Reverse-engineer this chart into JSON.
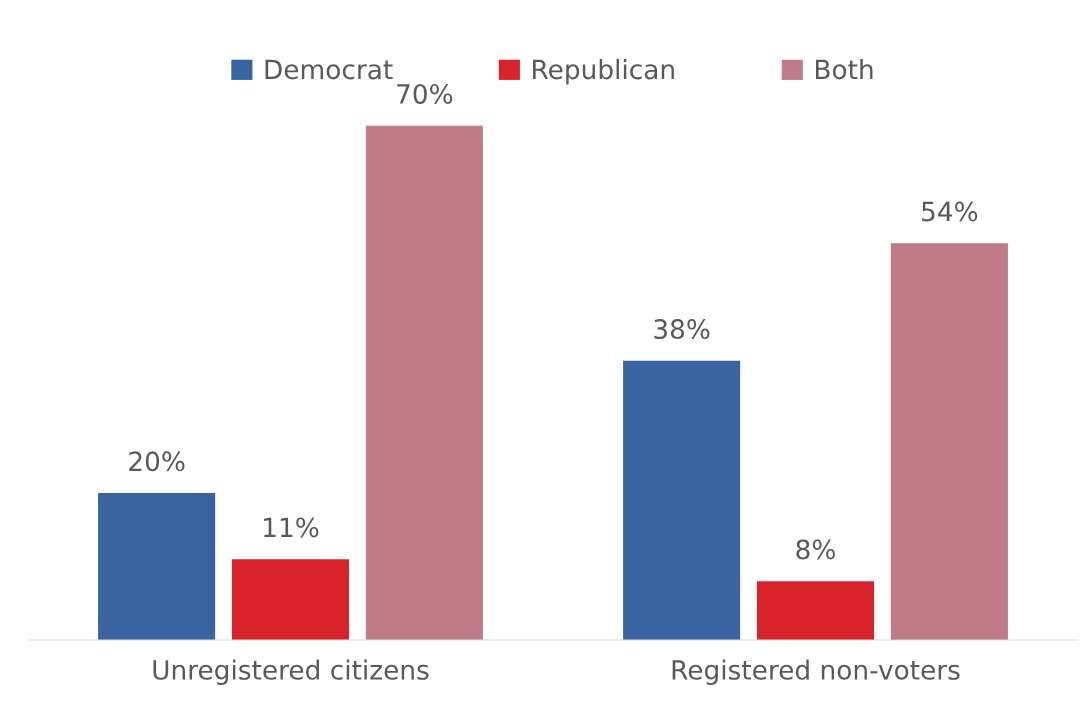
{
  "chart_data": {
    "type": "bar",
    "categories": [
      "Unregistered citizens",
      "Registered non-voters"
    ],
    "series": [
      {
        "name": "Democrat",
        "color": "#3a64a0",
        "values": [
          20,
          38
        ],
        "value_labels": [
          "20%",
          "38%"
        ]
      },
      {
        "name": "Republican",
        "color": "#d9232a",
        "values": [
          11,
          8
        ],
        "value_labels": [
          "11%",
          "8%"
        ]
      },
      {
        "name": "Both",
        "color": "#c07b88",
        "values": [
          70,
          54
        ],
        "value_labels": [
          "70%",
          "54%"
        ]
      }
    ],
    "legend": "top"
  }
}
